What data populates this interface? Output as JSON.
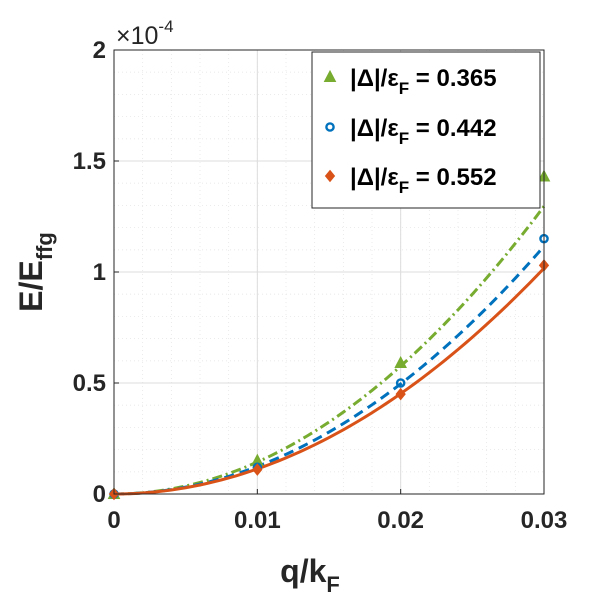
{
  "chart_data": {
    "type": "line",
    "xlabel": {
      "main": "q/k",
      "sub": "F"
    },
    "ylabel": {
      "main": "E/E",
      "sub": "ffg"
    },
    "exponent_label": {
      "prefix": "×10",
      "power": "-4"
    },
    "xlim": [
      0,
      0.03
    ],
    "ylim": [
      0,
      2.0
    ],
    "y_scale_factor": 0.0001,
    "xticks": [
      0,
      0.01,
      0.02,
      0.03
    ],
    "xtick_labels": [
      "0",
      "0.01",
      "0.02",
      "0.03"
    ],
    "yticks": [
      0,
      0.5,
      1,
      1.5,
      2
    ],
    "ytick_labels": [
      "0",
      "0.5",
      "1",
      "1.5",
      "2"
    ],
    "grid": true,
    "minor_grid": true,
    "legend_position": "top-right",
    "x": [
      0,
      0.01,
      0.02,
      0.03
    ],
    "series": [
      {
        "label_prefix": "|Δ|/ε",
        "label_sub": "F",
        "label_value": " = 0.365",
        "color": "#77AC30",
        "marker": "triangle",
        "line_style": "dashdot",
        "points": [
          0,
          0.15,
          0.59,
          1.43
        ],
        "fit_coef": 1.44
      },
      {
        "label_prefix": "|Δ|/ε",
        "label_sub": "F",
        "label_value": " = 0.442",
        "color": "#0072BD",
        "marker": "circle",
        "line_style": "dashed",
        "points": [
          0,
          0.12,
          0.5,
          1.15
        ],
        "fit_coef": 1.24
      },
      {
        "label_prefix": "|Δ|/ε",
        "label_sub": "F",
        "label_value": " = 0.552",
        "color": "#D95319",
        "marker": "diamond",
        "line_style": "solid",
        "points": [
          0,
          0.11,
          0.45,
          1.03
        ],
        "fit_coef": 1.13
      }
    ]
  }
}
